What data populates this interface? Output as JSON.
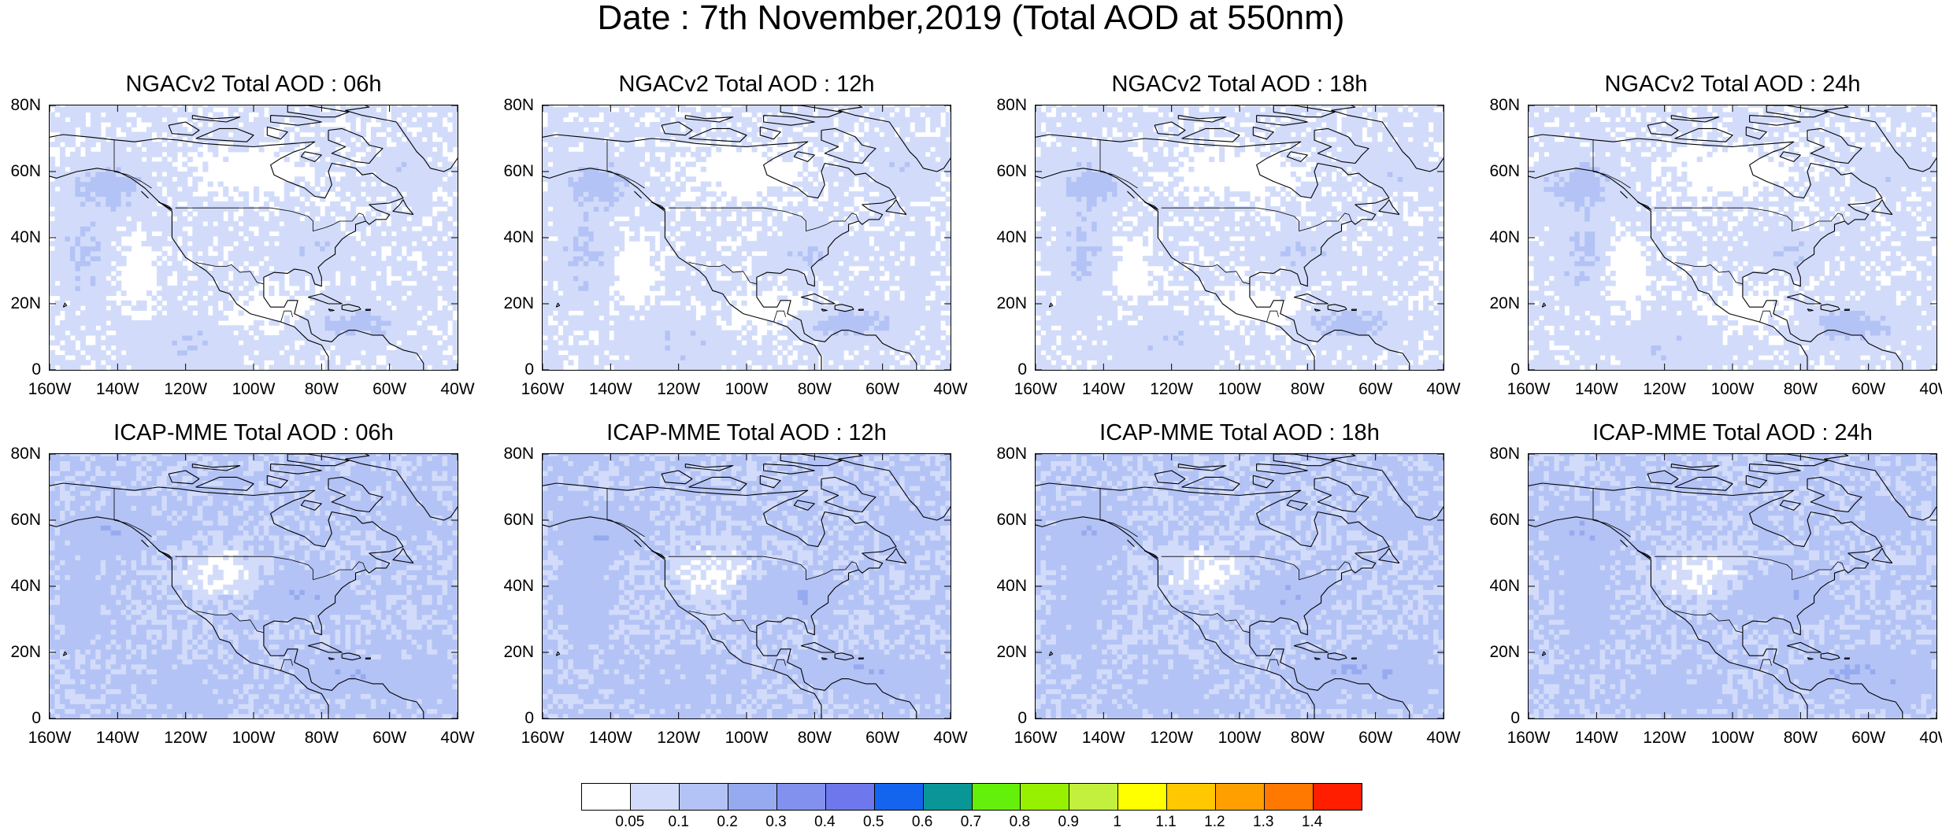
{
  "title": "Date : 7th November,2019 (Total AOD at 550nm)",
  "panels": [
    {
      "title": "NGACv2 Total AOD : 06h",
      "model": "NGACv2",
      "hour": "06h"
    },
    {
      "title": "NGACv2 Total AOD : 12h",
      "model": "NGACv2",
      "hour": "12h"
    },
    {
      "title": "NGACv2 Total AOD : 18h",
      "model": "NGACv2",
      "hour": "18h"
    },
    {
      "title": "NGACv2 Total AOD : 24h",
      "model": "NGACv2",
      "hour": "24h"
    },
    {
      "title": "ICAP-MME Total AOD : 06h",
      "model": "ICAP-MME",
      "hour": "06h"
    },
    {
      "title": "ICAP-MME Total AOD : 12h",
      "model": "ICAP-MME",
      "hour": "12h"
    },
    {
      "title": "ICAP-MME Total AOD : 18h",
      "model": "ICAP-MME",
      "hour": "18h"
    },
    {
      "title": "ICAP-MME Total AOD : 24h",
      "model": "ICAP-MME",
      "hour": "24h"
    }
  ],
  "axes": {
    "x_ticks": [
      "160W",
      "140W",
      "120W",
      "100W",
      "80W",
      "60W",
      "40W"
    ],
    "x_values": [
      -160,
      -140,
      -120,
      -100,
      -80,
      -60,
      -40
    ],
    "y_ticks": [
      "80N",
      "60N",
      "40N",
      "20N",
      "0"
    ],
    "y_values": [
      80,
      60,
      40,
      20,
      0
    ],
    "lon_range": [
      -160,
      -40
    ],
    "lat_range": [
      0,
      80
    ]
  },
  "colorbar": {
    "labels": [
      "0.05",
      "0.1",
      "0.2",
      "0.3",
      "0.4",
      "0.5",
      "0.6",
      "0.7",
      "0.8",
      "0.9",
      "1",
      "1.1",
      "1.2",
      "1.3",
      "1.4"
    ],
    "colors": [
      "#ffffff",
      "#d2dcfa",
      "#b4c3f5",
      "#96aaf0",
      "#8291ee",
      "#6e78ec",
      "#1464f0",
      "#0a9696",
      "#64f00a",
      "#96f000",
      "#c3f03c",
      "#ffff00",
      "#ffc800",
      "#ffa000",
      "#ff7800",
      "#ff1e00"
    ]
  }
}
